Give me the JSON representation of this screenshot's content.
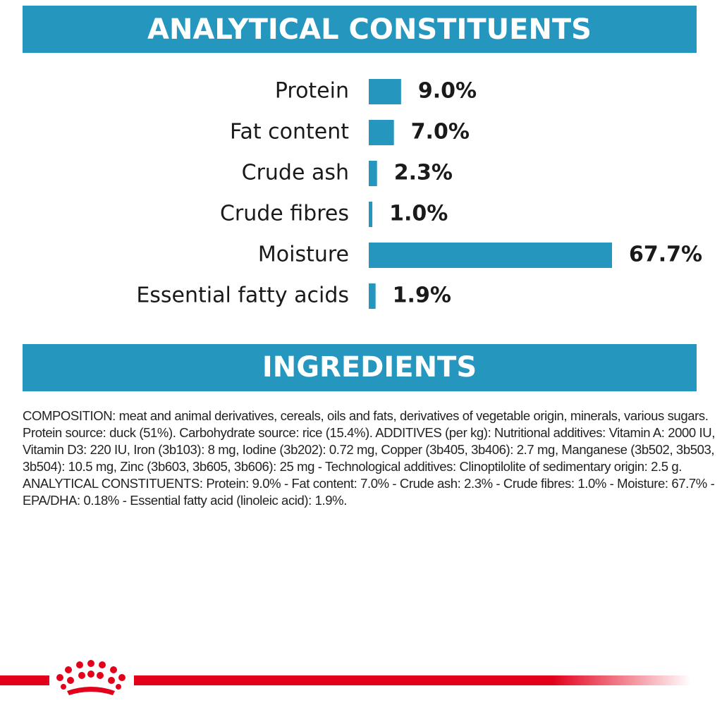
{
  "chart_data": {
    "type": "hbar",
    "title": "ANALYTICAL CONSTITUENTS",
    "categories": [
      "Protein",
      "Fat content",
      "Crude ash",
      "Crude fibres",
      "Moisture",
      "Essential fatty acids"
    ],
    "values": [
      9.0,
      7.0,
      2.3,
      1.0,
      67.7,
      1.9
    ],
    "value_labels": [
      "9.0%",
      "7.0%",
      "2.3%",
      "1.0%",
      "67.7%",
      "1.9%"
    ],
    "color": "#2596be"
  },
  "ingredients": {
    "title": "INGREDIENTS",
    "text": "COMPOSITION: meat and animal derivatives, cereals, oils and fats, derivatives of vegetable origin, minerals, various sugars. Protein source: duck (51%). Carbohydrate source: rice (15.4%). ADDITIVES (per kg): Nutritional additives: Vitamin A: 2000 IU, Vitamin D3: 220 IU, Iron (3b103): 8 mg, Iodine (3b202): 0.72 mg, Copper (3b405, 3b406): 2.7 mg, Manganese (3b502, 3b503, 3b504): 10.5 mg, Zinc (3b603, 3b605, 3b606): 25 mg - Technological additives: Clinoptilolite of sedimentary origin: 2.5 g. ANALYTICAL CONSTITUENTS: Protein: 9.0% - Fat content: 7.0% - Crude ash: 2.3% - Crude fibres: 1.0% - Moisture: 67.7% - EPA/DHA: 0.18% - Essential fatty acid (linoleic acid): 1.9%."
  }
}
